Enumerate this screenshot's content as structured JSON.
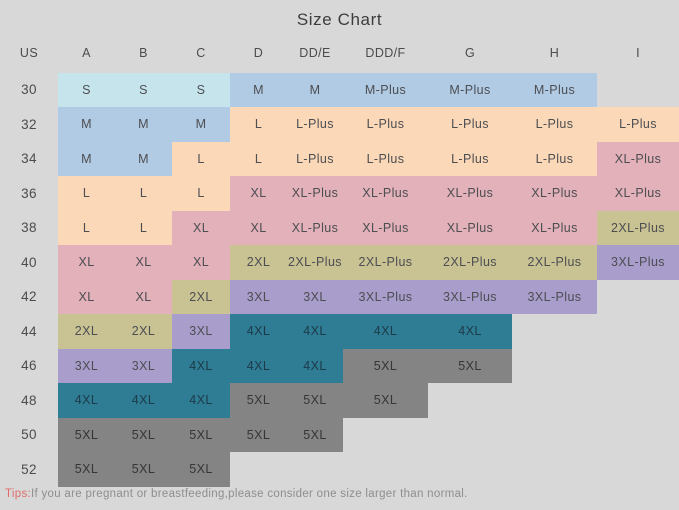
{
  "title": "Size Chart",
  "chart_data": {
    "type": "table",
    "title": "Size Chart",
    "row_header_label": "US",
    "columns": [
      "A",
      "B",
      "C",
      "D",
      "DD/E",
      "DDD/F",
      "G",
      "H",
      "I"
    ],
    "rows": [
      {
        "us": "30",
        "cells": [
          "S",
          "S",
          "S",
          "M",
          "M",
          "M-Plus",
          "M-Plus",
          "M-Plus",
          ""
        ]
      },
      {
        "us": "32",
        "cells": [
          "M",
          "M",
          "M",
          "L",
          "L-Plus",
          "L-Plus",
          "L-Plus",
          "L-Plus",
          "L-Plus"
        ]
      },
      {
        "us": "34",
        "cells": [
          "M",
          "M",
          "L",
          "L",
          "L-Plus",
          "L-Plus",
          "L-Plus",
          "L-Plus",
          "XL-Plus"
        ]
      },
      {
        "us": "36",
        "cells": [
          "L",
          "L",
          "L",
          "XL",
          "XL-Plus",
          "XL-Plus",
          "XL-Plus",
          "XL-Plus",
          "XL-Plus"
        ]
      },
      {
        "us": "38",
        "cells": [
          "L",
          "L",
          "XL",
          "XL",
          "XL-Plus",
          "XL-Plus",
          "XL-Plus",
          "XL-Plus",
          "2XL-Plus"
        ]
      },
      {
        "us": "40",
        "cells": [
          "XL",
          "XL",
          "XL",
          "2XL",
          "2XL-Plus",
          "2XL-Plus",
          "2XL-Plus",
          "2XL-Plus",
          "3XL-Plus"
        ]
      },
      {
        "us": "42",
        "cells": [
          "XL",
          "XL",
          "2XL",
          "3XL",
          "3XL",
          "3XL-Plus",
          "3XL-Plus",
          "3XL-Plus",
          ""
        ]
      },
      {
        "us": "44",
        "cells": [
          "2XL",
          "2XL",
          "3XL",
          "4XL",
          "4XL",
          "4XL",
          "4XL",
          "",
          ""
        ]
      },
      {
        "us": "46",
        "cells": [
          "3XL",
          "3XL",
          "4XL",
          "4XL",
          "4XL",
          "5XL",
          "5XL",
          "",
          ""
        ]
      },
      {
        "us": "48",
        "cells": [
          "4XL",
          "4XL",
          "4XL",
          "5XL",
          "5XL",
          "5XL",
          "",
          "",
          ""
        ]
      },
      {
        "us": "50",
        "cells": [
          "5XL",
          "5XL",
          "5XL",
          "5XL",
          "5XL",
          "",
          "",
          "",
          ""
        ]
      },
      {
        "us": "52",
        "cells": [
          "5XL",
          "5XL",
          "5XL",
          "",
          "",
          "",
          "",
          "",
          ""
        ]
      }
    ],
    "size_colors": {
      "S": "#c5e4ec",
      "M": "#b2cbe4",
      "L": "#fbd8b7",
      "XL": "#e3b1ba",
      "2XL": "#c9c293",
      "3XL": "#a99dcb",
      "4XL": "#2f7d95",
      "5XL": "#848484"
    },
    "size_text_colors": {
      "4XL": "#1d3a49",
      "5XL": "#363636"
    }
  },
  "tips": {
    "label": "Tips:",
    "text": "If you are pregnant or breastfeeding,please consider one size larger than normal."
  },
  "colors": {
    "background": "#d8d8d8",
    "title_text": "#3d3d3d",
    "header_text": "#4c4c4c",
    "default_cell_text": "#4c4e52",
    "tips_label": "#e16d6a",
    "tips_text": "#8e8e8e"
  }
}
